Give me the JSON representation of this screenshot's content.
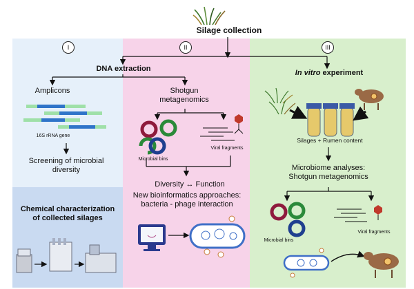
{
  "header": {
    "title": "Silage collection"
  },
  "sections": {
    "s1": {
      "numeral": "I",
      "amplicons": "Amplicons",
      "gene": "16S rRNA gene",
      "screening": "Screening of microbial diversity",
      "chemical": "Chemical characterization of collected silages"
    },
    "s2": {
      "numeral": "II",
      "shotgun": "Shotgun metagenomics",
      "bins": "Microbial bins",
      "viral": "Viral fragments",
      "diversity": "Diversity",
      "function": "Function",
      "bioinf": "New bioinformatics approaches: bacteria - phage interaction"
    },
    "s3": {
      "numeral": "III",
      "invitro_em": "In vitro",
      "invitro_rest": " experiment",
      "silages": "Silages + Rumen content",
      "microbiome": "Microbiome analyses: Shotgun metagenomics",
      "bins": "Microbial bins",
      "viral": "Viral fragments"
    }
  },
  "dna": {
    "label": "DNA extraction"
  },
  "colors": {
    "panel1": "#e6f0fa",
    "panel1b": "#c9daf1",
    "panel2": "#f7d3e9",
    "panel3": "#d8efcc",
    "bin_red": "#8e1a3c",
    "bin_green": "#2b8a3a",
    "bin_blue": "#1f3f8f",
    "phage": "#c0392b",
    "amplicon_green": "#9fe0a8",
    "amplicon_blue": "#2f74c9"
  }
}
